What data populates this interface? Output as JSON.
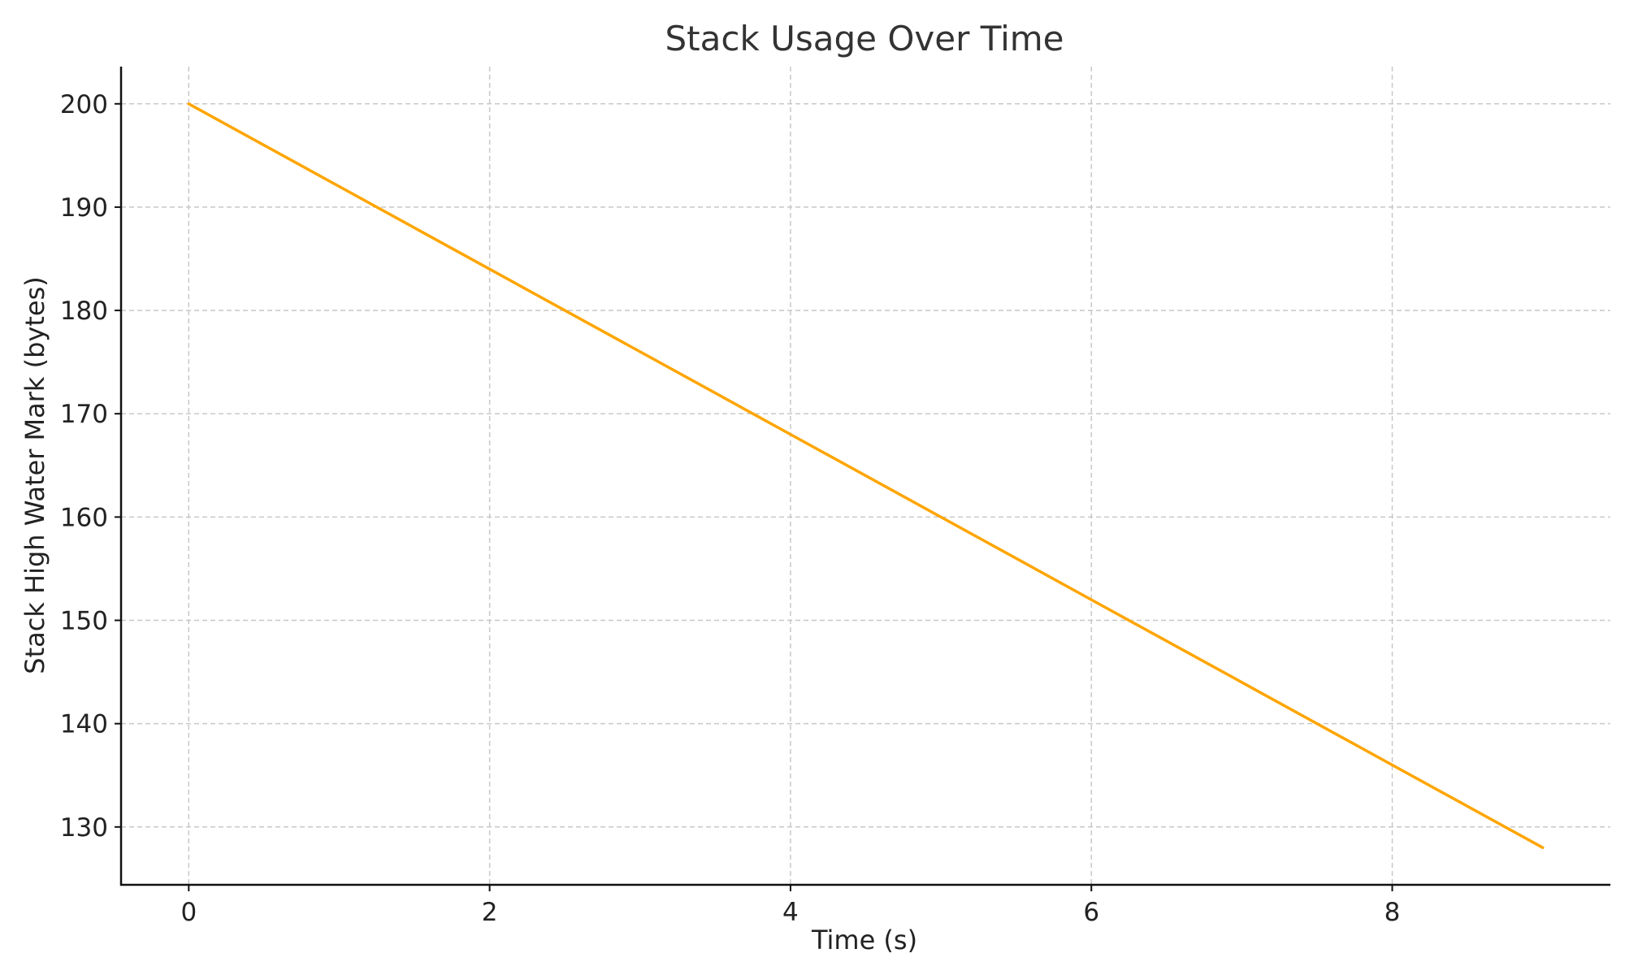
{
  "chart_data": {
    "type": "line",
    "title": "Stack Usage Over Time",
    "xlabel": "Time (s)",
    "ylabel": "Stack High Water Mark (bytes)",
    "x": [
      0,
      1,
      2,
      3,
      4,
      5,
      6,
      7,
      8,
      9
    ],
    "series": [
      {
        "values": [
          200,
          192,
          184,
          176,
          168,
          160,
          152,
          144,
          136,
          128
        ],
        "color": "#FFA500"
      }
    ],
    "xlim": [
      -0.45,
      9.45
    ],
    "ylim": [
      124.4,
      203.6
    ],
    "xticks": [
      0,
      2,
      4,
      6,
      8
    ],
    "yticks": [
      130,
      140,
      150,
      160,
      170,
      180,
      190,
      200
    ],
    "grid": true,
    "legend": "none"
  }
}
